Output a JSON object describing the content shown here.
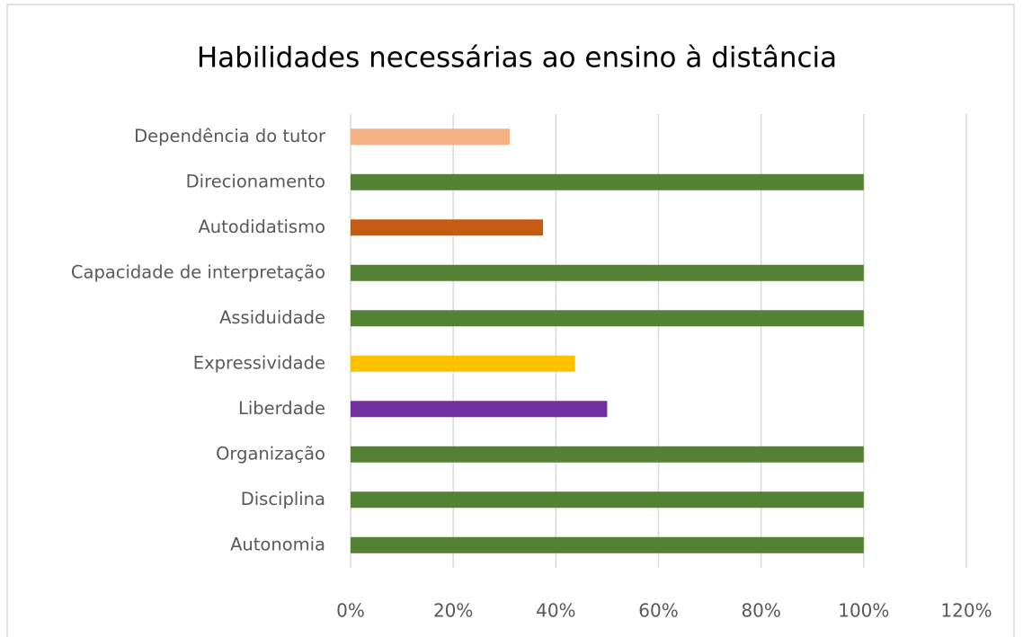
{
  "chart_data": {
    "type": "bar",
    "orientation": "horizontal",
    "title": "Habilidades necessárias ao ensino à distância",
    "categories": [
      "Dependência do tutor",
      "Direcionamento",
      "Autodidatismo",
      "Capacidade de interpretação",
      "Assiduidade",
      "Expressividade",
      "Liberdade",
      "Organização",
      "Disciplina",
      "Autonomia"
    ],
    "values": [
      31,
      100,
      37.5,
      100,
      100,
      43.75,
      50,
      100,
      100,
      100
    ],
    "colors": [
      "#f4b183",
      "#548235",
      "#c55a11",
      "#548235",
      "#548235",
      "#ffc000",
      "#7030a0",
      "#548235",
      "#548235",
      "#548235"
    ],
    "xlim": [
      0,
      120
    ],
    "xticks": [
      {
        "value": 0,
        "label": "0%"
      },
      {
        "value": 20,
        "label": "20%"
      },
      {
        "value": 40,
        "label": "40%"
      },
      {
        "value": 60,
        "label": "60%"
      },
      {
        "value": 80,
        "label": "80%"
      },
      {
        "value": 100,
        "label": "100%"
      },
      {
        "value": 120,
        "label": "120%"
      }
    ],
    "grid": true
  }
}
